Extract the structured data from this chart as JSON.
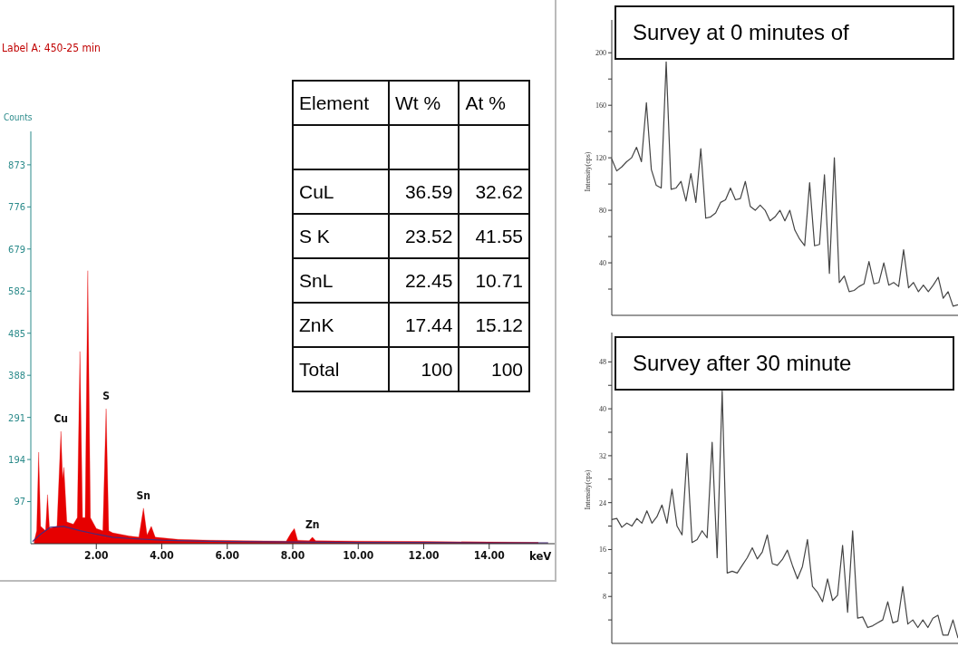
{
  "chart_data": [
    {
      "type": "area",
      "title": "Label A: 450-25 min",
      "ylabel": "Counts",
      "xlabel": "keV",
      "xlim": [
        0,
        16
      ],
      "xticks": [
        {
          "value": 2,
          "label": "2.00"
        },
        {
          "value": 4,
          "label": "4.00"
        },
        {
          "value": 6,
          "label": "6.00"
        },
        {
          "value": 8,
          "label": "8.00"
        },
        {
          "value": 10,
          "label": "10.00"
        },
        {
          "value": 12,
          "label": "12.00"
        },
        {
          "value": 14,
          "label": "14.00"
        }
      ],
      "ylim": [
        0,
        950
      ],
      "yticks": [
        97,
        194,
        291,
        388,
        485,
        582,
        679,
        776,
        873
      ],
      "series": [
        {
          "color": "#e60000",
          "x": [
            0.1,
            0.18,
            0.24,
            0.3,
            0.45,
            0.51,
            0.57,
            0.8,
            0.92,
            0.97,
            1.01,
            1.1,
            1.3,
            1.42,
            1.5,
            1.58,
            1.66,
            1.74,
            1.82,
            2.0,
            2.2,
            2.3,
            2.38,
            2.5,
            3.0,
            3.3,
            3.44,
            3.55,
            3.68,
            3.8,
            4.5,
            5.5,
            6.5,
            7.8,
            7.95,
            8.05,
            8.15,
            8.5,
            8.6,
            8.7,
            10,
            12,
            14,
            15.5
          ],
          "values": [
            5,
            30,
            211,
            40,
            30,
            113,
            35,
            40,
            259,
            150,
            176,
            50,
            45,
            60,
            443,
            60,
            60,
            629,
            60,
            35,
            30,
            311,
            30,
            25,
            18,
            15,
            82,
            20,
            40,
            15,
            10,
            8,
            7,
            6,
            25,
            35,
            8,
            7,
            15,
            7,
            6,
            5,
            4,
            3
          ]
        },
        {
          "type": "line",
          "color": "#4b2a7a",
          "x": [
            0.05,
            0.3,
            0.6,
            1.0,
            1.5,
            2.0,
            2.5,
            3,
            4,
            5,
            6,
            8,
            10,
            12,
            14,
            15.8
          ],
          "values": [
            5,
            22,
            38,
            40,
            30,
            22,
            15,
            12,
            8,
            6,
            5,
            4,
            3,
            3,
            2,
            2
          ]
        }
      ],
      "annotations": [
        {
          "text": "Cu",
          "x": 0.92,
          "y": 259
        },
        {
          "text": "S",
          "x": 2.3,
          "y": 311
        },
        {
          "text": "Sn",
          "x": 3.44,
          "y": 82
        },
        {
          "text": "Zn",
          "x": 8.6,
          "y": 15
        }
      ]
    },
    {
      "type": "other",
      "xlabel": "Element",
      "categories": [
        "CuL",
        "S K",
        "SnL",
        "ZnK",
        "Total"
      ],
      "data_labels": true,
      "series": [
        {
          "name": "Wt %",
          "values": [
            36.59,
            23.52,
            22.45,
            17.44,
            100
          ]
        },
        {
          "name": "At %",
          "values": [
            32.62,
            41.55,
            10.71,
            15.12,
            100
          ]
        }
      ]
    },
    {
      "type": "line",
      "title": "Survey at 0 minutes of",
      "ylabel": "Intensity(cps)",
      "tick_labels": "y",
      "ylim": [
        0,
        225
      ],
      "yticks": [
        {
          "value": 20,
          "label": null
        },
        40,
        {
          "value": 60,
          "label": null
        },
        80,
        {
          "value": 100,
          "label": null
        },
        120,
        {
          "value": 140,
          "label": null
        },
        160,
        {
          "value": 180,
          "label": null
        },
        200
      ],
      "categories": [
        null,
        null,
        null,
        null,
        null,
        null,
        null,
        null,
        null,
        null,
        null,
        null,
        null,
        null,
        null,
        null,
        null,
        null,
        null,
        null,
        null,
        null,
        null,
        null,
        null,
        null,
        null,
        null,
        null,
        null,
        null,
        null,
        null,
        null,
        null,
        null,
        null,
        null,
        null,
        null,
        null,
        null,
        null,
        null,
        null,
        null,
        null,
        null,
        null,
        null,
        null,
        null,
        null,
        null,
        null,
        null,
        null,
        null,
        null,
        null,
        null,
        null,
        null,
        null,
        null,
        null,
        null,
        null,
        null,
        null,
        null
      ],
      "series": [
        {
          "color": "#444444",
          "values": [
            119,
            110,
            113,
            117,
            120,
            128,
            117,
            162,
            111,
            99,
            97,
            193,
            96,
            97,
            102,
            87,
            108,
            86,
            127,
            74,
            75,
            78,
            86,
            88,
            97,
            88,
            89,
            102,
            83,
            80,
            84,
            80,
            72,
            75,
            80,
            72,
            80,
            65,
            58,
            53,
            101,
            53,
            54,
            107,
            32,
            120,
            25,
            30,
            18,
            19,
            22,
            24,
            41,
            24,
            25,
            40,
            23,
            25,
            22,
            50,
            21,
            25,
            18,
            23,
            18,
            23,
            29,
            13,
            18,
            7,
            8
          ]
        }
      ]
    },
    {
      "type": "line",
      "title": "Survey after 30 minute",
      "ylabel": "Intensity(cps)",
      "tick_labels": "y",
      "ylim": [
        0,
        53
      ],
      "yticks": [
        {
          "value": 4,
          "label": null
        },
        8,
        {
          "value": 12,
          "label": null
        },
        16,
        {
          "value": 20,
          "label": null
        },
        24,
        {
          "value": 28,
          "label": null
        },
        32,
        {
          "value": 36,
          "label": null
        },
        40,
        {
          "value": 44,
          "label": null
        },
        48
      ],
      "categories": [
        null,
        null,
        null,
        null,
        null,
        null,
        null,
        null,
        null,
        null,
        null,
        null,
        null,
        null,
        null,
        null,
        null,
        null,
        null,
        null,
        null,
        null,
        null,
        null,
        null,
        null,
        null,
        null,
        null,
        null,
        null,
        null,
        null,
        null,
        null,
        null,
        null,
        null,
        null,
        null,
        null,
        null,
        null,
        null,
        null,
        null,
        null,
        null,
        null,
        null,
        null,
        null,
        null,
        null,
        null,
        null,
        null,
        null,
        null,
        null,
        null,
        null,
        null,
        null,
        null,
        null,
        null,
        null,
        null,
        null
      ],
      "series": [
        {
          "color": "#444444",
          "values": [
            21.1,
            21.3,
            19.8,
            20.5,
            20.0,
            21.3,
            20.5,
            22.6,
            20.5,
            21.6,
            23.6,
            20.5,
            26.3,
            20.0,
            18.5,
            32.4,
            17.2,
            17.7,
            19.2,
            18.0,
            34.3,
            14.6,
            43,
            12.0,
            12.3,
            12.0,
            13.3,
            14.6,
            16.3,
            14.4,
            15.6,
            18.5,
            13.6,
            13.3,
            14.3,
            15.9,
            13.3,
            11.0,
            13.1,
            17.7,
            9.7,
            8.7,
            7.1,
            11.0,
            7.3,
            8.2,
            16.7,
            5.3,
            19.2,
            4.3,
            4.5,
            2.7,
            3.0,
            3.5,
            4.0,
            7.1,
            3.5,
            3.8,
            9.7,
            3.3,
            4.0,
            2.7,
            4.0,
            2.7,
            4.3,
            4.8,
            1.4,
            1.4,
            4.0,
            0.9
          ]
        }
      ]
    }
  ]
}
